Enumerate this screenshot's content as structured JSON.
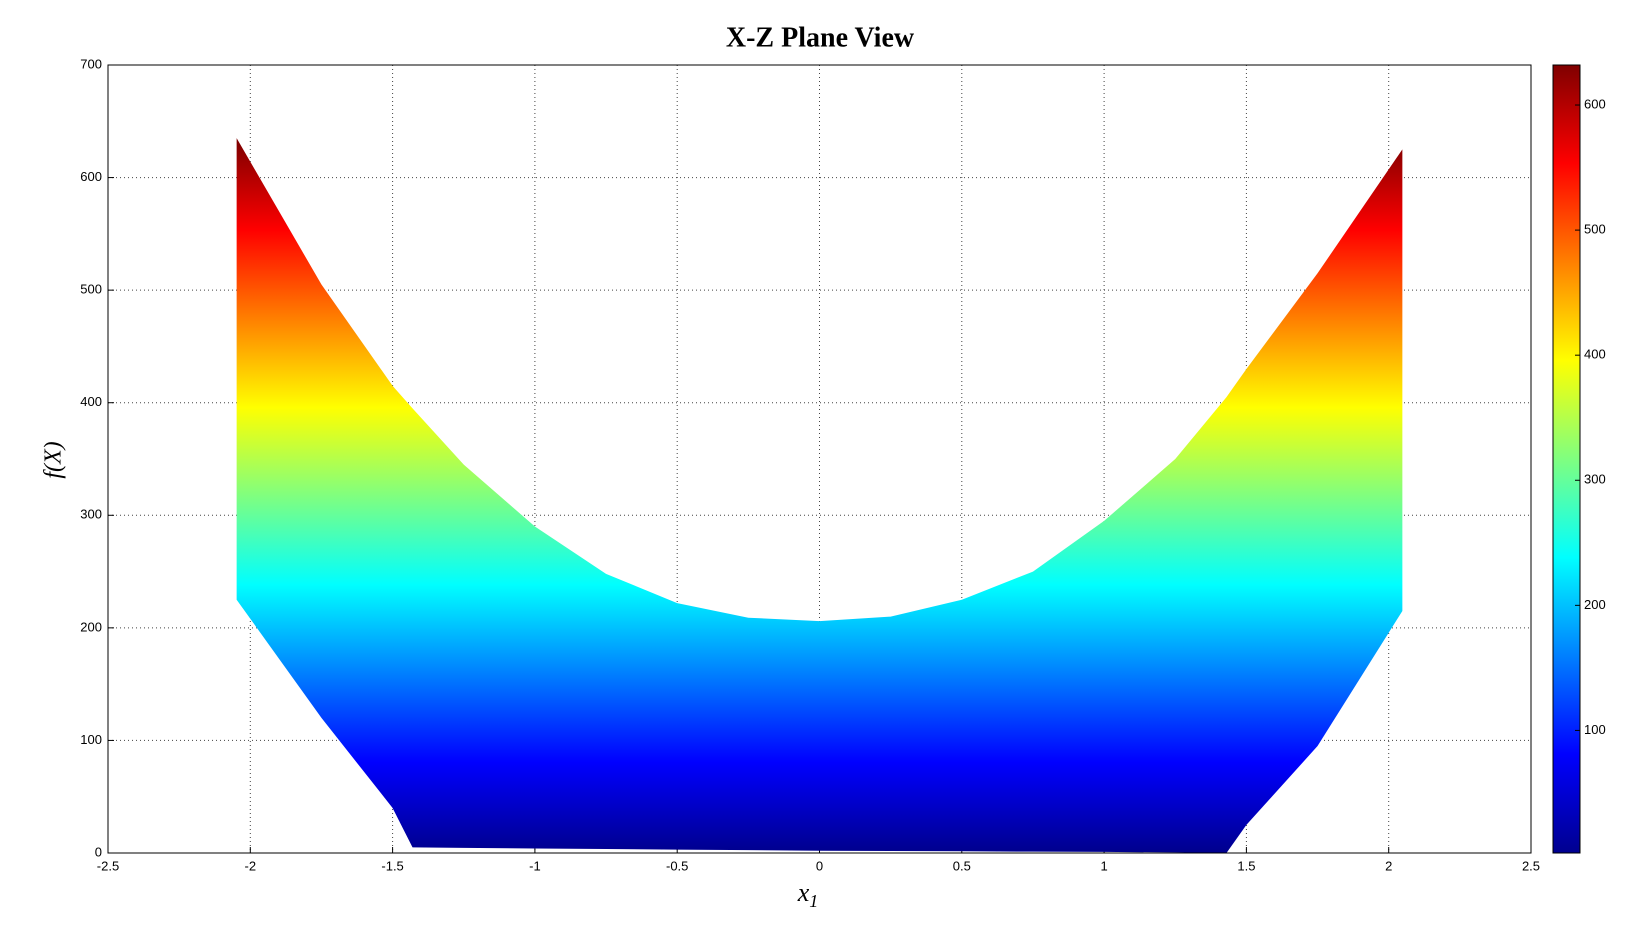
{
  "chart_data": {
    "type": "area",
    "title": "X-Z Plane View",
    "xlabel": "x",
    "xlabel_sub": "1",
    "ylabel": "f(X)",
    "x": [
      -2.048,
      -1.75,
      -1.5,
      -1.43,
      -1.25,
      -1,
      -0.75,
      -0.5,
      -0.25,
      0,
      0.25,
      0.5,
      0.75,
      1,
      1.25,
      1.43,
      1.5,
      1.75,
      2.048
    ],
    "series": [
      {
        "values": [
          635,
          505,
          415,
          395,
          345,
          290,
          248,
          222,
          209,
          206,
          210,
          225,
          250,
          295,
          350,
          405,
          430,
          515,
          625
        ]
      },
      {
        "values": [
          225,
          120,
          40,
          5,
          4.5,
          4,
          3.5,
          3,
          2.5,
          2,
          1.8,
          1.5,
          1.2,
          1,
          0.5,
          0,
          25,
          95,
          215
        ]
      }
    ],
    "xlim": [
      -2.5,
      2.5
    ],
    "xticks": [
      -2.5,
      -2,
      -1.5,
      -1,
      -0.5,
      0,
      0.5,
      1,
      1.5,
      2,
      2.5
    ],
    "ylim": [
      0,
      700
    ],
    "yticks": [
      0,
      100,
      200,
      300,
      400,
      500,
      600,
      700
    ],
    "grid": true,
    "colormap": "jet",
    "clim": [
      2,
      632
    ],
    "cticks": [
      100,
      200,
      300,
      400,
      500,
      600
    ]
  }
}
